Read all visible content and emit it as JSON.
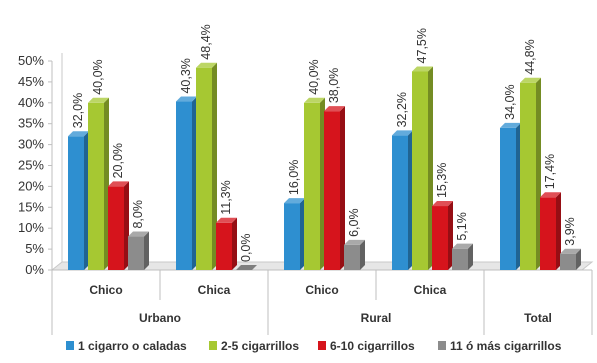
{
  "chart_data": {
    "type": "bar",
    "title": "",
    "xlabel": "",
    "ylabel": "",
    "ylim": [
      0,
      50
    ],
    "yticks": [
      "0%",
      "5%",
      "10%",
      "15%",
      "20%",
      "25%",
      "30%",
      "35%",
      "40%",
      "45%",
      "50%"
    ],
    "grid": false,
    "legend_position": "bottom",
    "groups": [
      {
        "label": "Urbano",
        "categories": [
          "Chico",
          "Chica"
        ]
      },
      {
        "label": "Rural",
        "categories": [
          "Chico",
          "Chica"
        ]
      },
      {
        "label": "Total",
        "categories": [
          ""
        ]
      }
    ],
    "series": [
      {
        "name": "1 cigarro o caladas",
        "color": "#2e8fd0",
        "values": [
          32.0,
          40.3,
          16.0,
          32.2,
          34.0
        ],
        "labels": [
          "32,0%",
          "40,3%",
          "16,0%",
          "32,2%",
          "34,0%"
        ]
      },
      {
        "name": "2-5 cigarrillos",
        "color": "#a6c832",
        "values": [
          40.0,
          48.4,
          40.0,
          47.5,
          44.8
        ],
        "labels": [
          "40,0%",
          "48,4%",
          "40,0%",
          "47,5%",
          "44,8%"
        ]
      },
      {
        "name": "6-10 cigarrillos",
        "color": "#d6141c",
        "values": [
          20.0,
          11.3,
          38.0,
          15.3,
          17.4
        ],
        "labels": [
          "20,0%",
          "11,3%",
          "38,0%",
          "15,3%",
          "17,4%"
        ]
      },
      {
        "name": "11 ó más cigarrillos",
        "color": "#8c8c8c",
        "values": [
          8.0,
          0.0,
          6.0,
          5.1,
          3.9
        ],
        "labels": [
          "8,0%",
          "0,0%",
          "6,0%",
          "5,1%",
          "3,9%"
        ]
      }
    ]
  }
}
